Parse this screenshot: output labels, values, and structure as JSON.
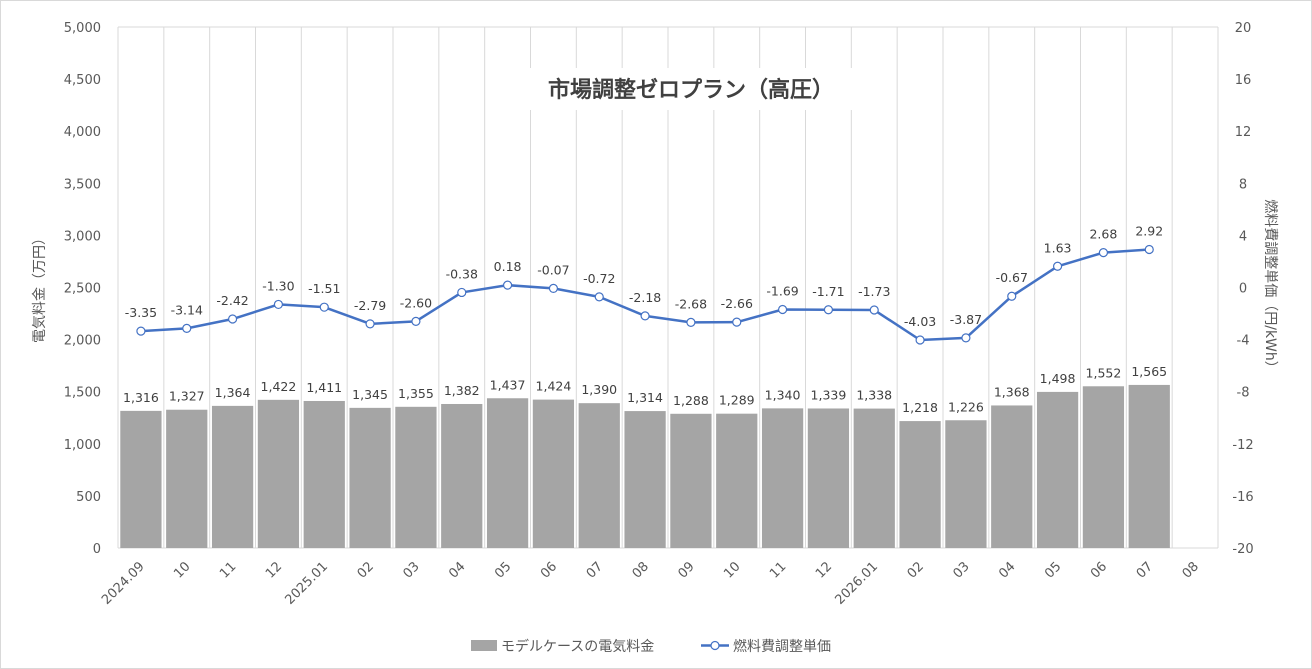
{
  "chart_data": {
    "type": "bar+line",
    "title": "市場調整ゼロプラン（高圧）",
    "categories": [
      "2024.09",
      "10",
      "11",
      "12",
      "2025.01",
      "02",
      "03",
      "04",
      "05",
      "06",
      "07",
      "08",
      "09",
      "10",
      "11",
      "12",
      "2026.01",
      "02",
      "03",
      "04",
      "05",
      "06",
      "07",
      "08"
    ],
    "series": [
      {
        "name": "モデルケースの電気料金",
        "type": "bar",
        "axis": "left",
        "values": [
          1316,
          1327,
          1364,
          1422,
          1411,
          1345,
          1355,
          1382,
          1437,
          1424,
          1390,
          1314,
          1288,
          1289,
          1340,
          1339,
          1338,
          1218,
          1226,
          1368,
          1498,
          1552,
          1565,
          null
        ],
        "labels": [
          "1,316",
          "1,327",
          "1,364",
          "1,422",
          "1,411",
          "1,345",
          "1,355",
          "1,382",
          "1,437",
          "1,424",
          "1,390",
          "1,314",
          "1,288",
          "1,289",
          "1,340",
          "1,339",
          "1,338",
          "1,218",
          "1,226",
          "1,368",
          "1,498",
          "1,552",
          "1,565",
          ""
        ]
      },
      {
        "name": "燃料費調整単価",
        "type": "line",
        "axis": "right",
        "values": [
          -3.35,
          -3.14,
          -2.42,
          -1.3,
          -1.51,
          -2.79,
          -2.6,
          -0.38,
          0.18,
          -0.07,
          -0.72,
          -2.18,
          -2.68,
          -2.66,
          -1.69,
          -1.71,
          -1.73,
          -4.03,
          -3.87,
          -0.67,
          1.63,
          2.68,
          2.92,
          null
        ],
        "labels": [
          "-3.35",
          "-3.14",
          "-2.42",
          "-1.30",
          "-1.51",
          "-2.79",
          "-2.60",
          "-0.38",
          "0.18",
          "-0.07",
          "-0.72",
          "-2.18",
          "-2.68",
          "-2.66",
          "-1.69",
          "-1.71",
          "-1.73",
          "-4.03",
          "-3.87",
          "-0.67",
          "1.63",
          "2.68",
          "2.92",
          ""
        ]
      }
    ],
    "ylabel_left": "電気料金（万円）",
    "ylabel_right": "燃料費調整単価（円/kWh）",
    "ylim_left": [
      0,
      5000
    ],
    "ylim_right": [
      -20,
      20
    ],
    "yticks_left": [
      "0",
      "500",
      "1,000",
      "1,500",
      "2,000",
      "2,500",
      "3,000",
      "3,500",
      "4,000",
      "4,500",
      "5,000"
    ],
    "yticks_right": [
      "-20",
      "-16",
      "-12",
      "-8",
      "-4",
      "0",
      "4",
      "8",
      "12",
      "16",
      "20"
    ],
    "grid": "vertical",
    "legend_position": "bottom",
    "colors": {
      "bar": "#a5a5a5",
      "line": "#4472c4",
      "grid": "#d9d9d9"
    }
  }
}
